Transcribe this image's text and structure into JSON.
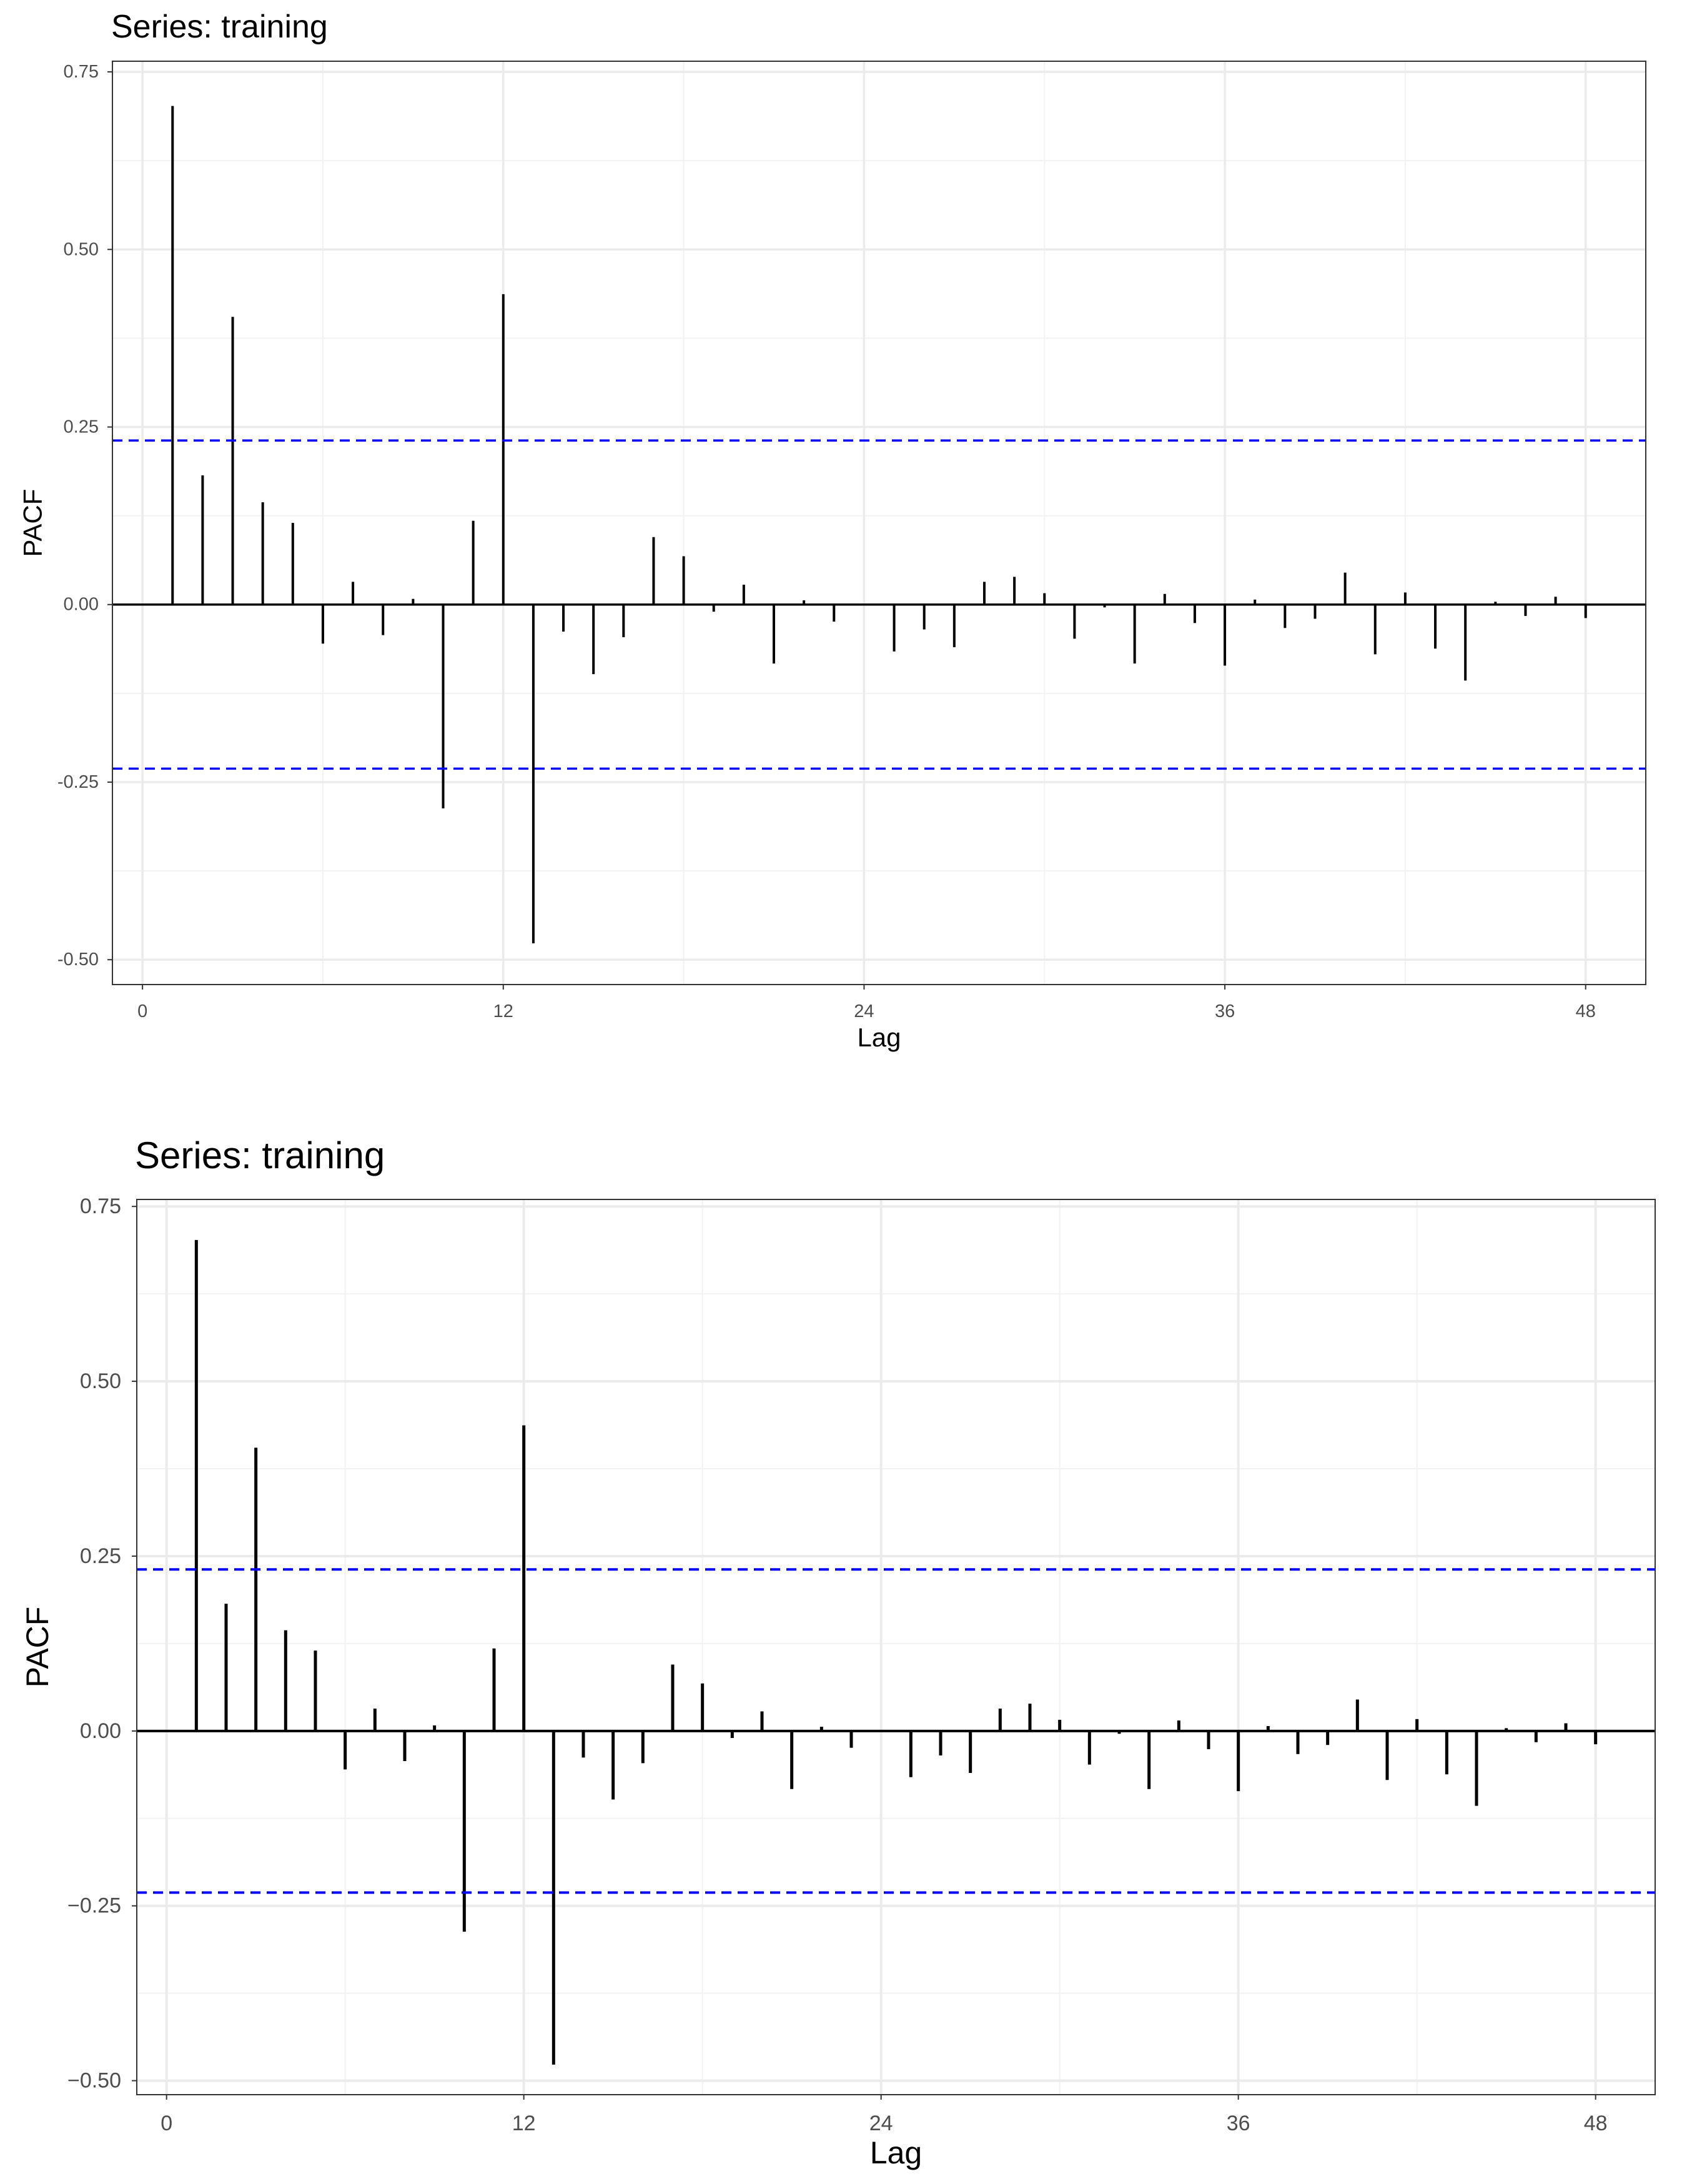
{
  "chart_data": [
    {
      "type": "bar",
      "title": "Series: training",
      "xlabel": "Lag",
      "ylabel": "PACF",
      "xlim": [
        -1,
        50
      ],
      "ylim": [
        -0.535,
        0.765
      ],
      "xticks": [
        0,
        12,
        24,
        36,
        48
      ],
      "xtick_labels": [
        "0",
        "12",
        "24",
        "36",
        "48"
      ],
      "yticks": [
        -0.5,
        -0.25,
        0,
        0.25,
        0.5,
        0.75
      ],
      "ytick_labels": [
        "-0.50",
        "-0.25",
        "0.00",
        "0.25",
        "0.50",
        "0.75"
      ],
      "lags": [
        1,
        2,
        3,
        4,
        5,
        6,
        7,
        8,
        9,
        10,
        11,
        12,
        13,
        14,
        15,
        16,
        17,
        18,
        19,
        20,
        21,
        22,
        23,
        24,
        25,
        26,
        27,
        28,
        29,
        30,
        31,
        32,
        33,
        34,
        35,
        36,
        37,
        38,
        39,
        40,
        41,
        42,
        43,
        44,
        45,
        46,
        47,
        48
      ],
      "values": [
        0.702,
        0.182,
        0.405,
        0.144,
        0.115,
        -0.055,
        0.032,
        -0.043,
        0.008,
        -0.287,
        0.118,
        0.437,
        -0.477,
        -0.038,
        -0.098,
        -0.046,
        0.095,
        0.068,
        -0.01,
        0.028,
        -0.083,
        0.006,
        -0.024,
        0.0,
        -0.066,
        -0.035,
        -0.06,
        0.032,
        0.039,
        0.016,
        -0.048,
        -0.004,
        -0.083,
        0.015,
        -0.026,
        -0.086,
        0.007,
        -0.033,
        -0.02,
        0.045,
        -0.07,
        0.017,
        -0.062,
        -0.107,
        0.004,
        -0.016,
        0.011,
        -0.019
      ],
      "conf_limits": [
        0.231,
        -0.231
      ],
      "conf_color": "#0000ff",
      "grid": true
    },
    {
      "type": "bar",
      "title": "Series: training",
      "xlabel": "Lag",
      "ylabel": "PACF",
      "xlim": [
        -1,
        50
      ],
      "ylim": [
        -0.52,
        0.76
      ],
      "xticks": [
        0,
        12,
        24,
        36,
        48
      ],
      "xtick_labels": [
        "0",
        "12",
        "24",
        "36",
        "48"
      ],
      "yticks": [
        -0.5,
        -0.25,
        0,
        0.25,
        0.5,
        0.75
      ],
      "ytick_labels": [
        "−0.50",
        "−0.25",
        "0.00",
        "0.25",
        "0.50",
        "0.75"
      ],
      "lags": [
        1,
        2,
        3,
        4,
        5,
        6,
        7,
        8,
        9,
        10,
        11,
        12,
        13,
        14,
        15,
        16,
        17,
        18,
        19,
        20,
        21,
        22,
        23,
        24,
        25,
        26,
        27,
        28,
        29,
        30,
        31,
        32,
        33,
        34,
        35,
        36,
        37,
        38,
        39,
        40,
        41,
        42,
        43,
        44,
        45,
        46,
        47,
        48
      ],
      "values": [
        0.702,
        0.182,
        0.405,
        0.144,
        0.115,
        -0.055,
        0.032,
        -0.043,
        0.008,
        -0.287,
        0.118,
        0.437,
        -0.477,
        -0.038,
        -0.098,
        -0.046,
        0.095,
        0.068,
        -0.01,
        0.028,
        -0.083,
        0.006,
        -0.024,
        0.0,
        -0.066,
        -0.035,
        -0.06,
        0.032,
        0.039,
        0.016,
        -0.048,
        -0.004,
        -0.083,
        0.015,
        -0.026,
        -0.086,
        0.007,
        -0.033,
        -0.02,
        0.045,
        -0.07,
        0.017,
        -0.062,
        -0.107,
        0.004,
        -0.016,
        0.011,
        -0.019
      ],
      "conf_limits": [
        0.231,
        -0.231
      ],
      "conf_color": "#0000ff",
      "grid": true
    }
  ]
}
